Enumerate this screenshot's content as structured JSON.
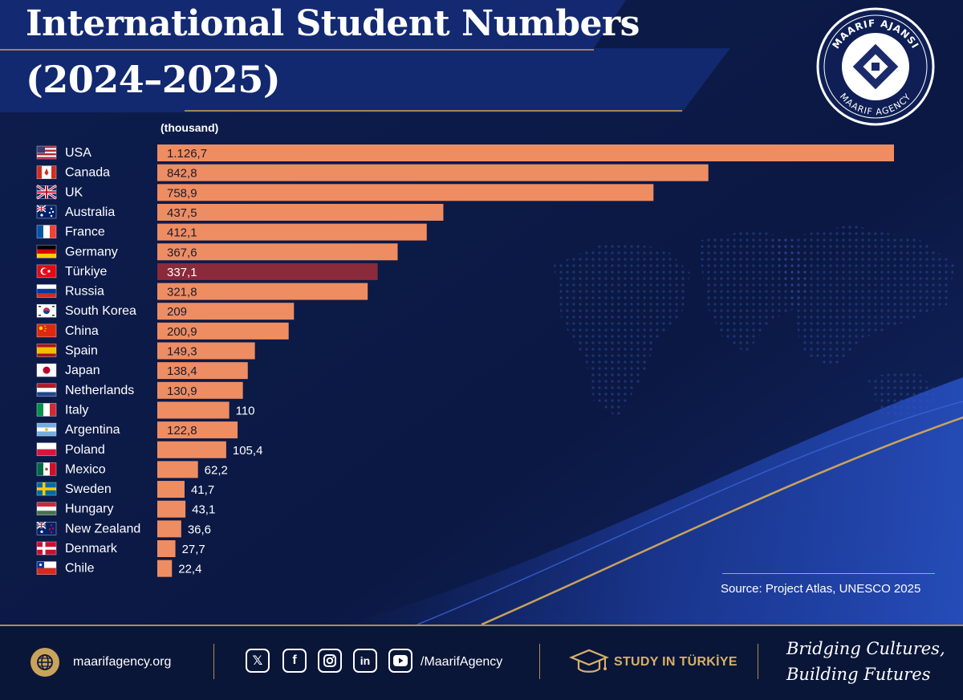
{
  "header": {
    "title_line1": "International Student Numbers",
    "title_line2": "(2024–2025)"
  },
  "logo": {
    "text_top": "MAARIF AJANSI",
    "text_bottom": "MAARIF AGENCY"
  },
  "chart_data": {
    "type": "bar",
    "orientation": "horizontal",
    "unit_label": "(thousand)",
    "categories": [
      "USA",
      "Canada",
      "UK",
      "Australia",
      "France",
      "Germany",
      "Türkiye",
      "Russia",
      "South Korea",
      "China",
      "Spain",
      "Japan",
      "Netherlands",
      "Italy",
      "Argentina",
      "Poland",
      "Mexico",
      "Sweden",
      "Hungary",
      "New Zealand",
      "Denmark",
      "Chile"
    ],
    "values": [
      1126.7,
      842.8,
      758.9,
      437.5,
      412.1,
      367.6,
      337.1,
      321.8,
      209,
      200.9,
      149.3,
      138.4,
      130.9,
      110,
      122.8,
      105.4,
      62.2,
      41.7,
      43.1,
      36.6,
      27.7,
      22.4
    ],
    "value_labels": [
      "1.126,7",
      "842,8",
      "758,9",
      "437,5",
      "412,1",
      "367,6",
      "337,1",
      "321,8",
      "209",
      "200,9",
      "149,3",
      "138,4",
      "130,9",
      "110",
      "122,8",
      "105,4",
      "62,2",
      "41,7",
      "43,1",
      "36,6",
      "27,7",
      "22,4"
    ],
    "flags": [
      "flag-usa",
      "flag-canada",
      "flag-uk",
      "flag-australia",
      "flag-france",
      "flag-germany",
      "flag-turkiye",
      "flag-russia",
      "flag-south-korea",
      "flag-china",
      "flag-spain",
      "flag-japan",
      "flag-netherlands",
      "flag-italy",
      "flag-argentina",
      "flag-poland",
      "flag-mexico",
      "flag-sweden",
      "flag-hungary",
      "flag-new-zealand",
      "flag-denmark",
      "flag-chile"
    ],
    "xlim": [
      0,
      1126.7
    ],
    "highlight_category": "Türkiye",
    "bar_color": "#ee8d62",
    "highlight_color": "#8a2a3a",
    "grid": false,
    "legend": "none"
  },
  "source": "Source: Project Atlas, UNESCO 2025",
  "footer": {
    "website": "maarifagency.org",
    "social_icons": [
      "x-icon",
      "facebook-icon",
      "instagram-icon",
      "linkedin-icon",
      "youtube-icon"
    ],
    "handle": "/MaarifAgency",
    "study": "STUDY IN TÜRKİYE",
    "slogan_line1": "Bridging Cultures,",
    "slogan_line2": "Building Futures"
  },
  "colors": {
    "background": "#0c1a45",
    "accent_gold": "#c9a35c",
    "bar": "#ee8d62",
    "highlight": "#8a2a3a"
  }
}
